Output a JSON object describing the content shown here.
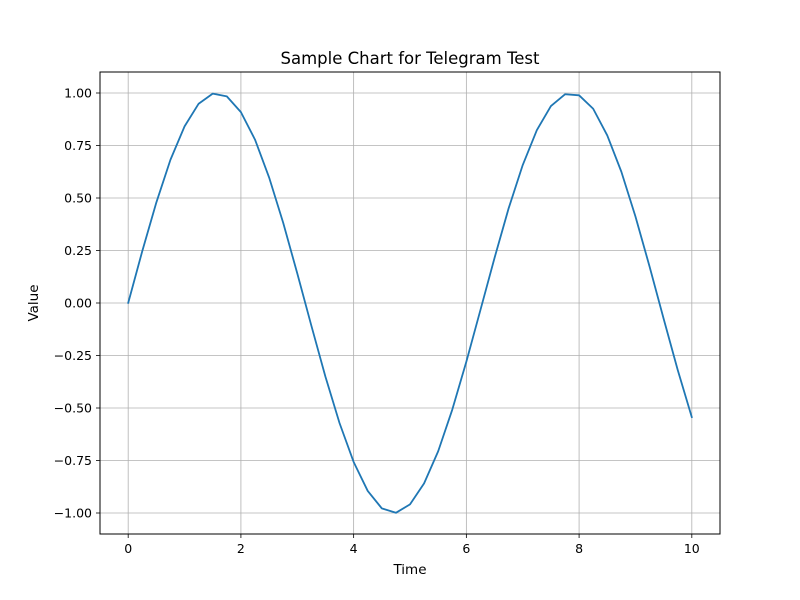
{
  "chart_data": {
    "type": "line",
    "title": "Sample Chart for Telegram Test",
    "xlabel": "Time",
    "ylabel": "Value",
    "xlim": [
      -0.5,
      10.5
    ],
    "ylim": [
      -1.1,
      1.1
    ],
    "grid": true,
    "legend": "none",
    "x_ticks": [
      0,
      2,
      4,
      6,
      8,
      10
    ],
    "x_tick_labels": [
      "0",
      "2",
      "4",
      "6",
      "8",
      "10"
    ],
    "y_ticks": [
      -1.0,
      -0.75,
      -0.5,
      -0.25,
      0.0,
      0.25,
      0.5,
      0.75,
      1.0
    ],
    "y_tick_labels": [
      "−1.00",
      "−0.75",
      "−0.50",
      "−0.25",
      "0.00",
      "0.25",
      "0.50",
      "0.75",
      "1.00"
    ],
    "colors": {
      "line": "#1f77b4",
      "grid": "#b0b0b0",
      "axes": "#000000"
    },
    "series": [
      {
        "x": [
          0,
          0.25,
          0.5,
          0.75,
          1.0,
          1.25,
          1.5,
          1.75,
          2.0,
          2.25,
          2.5,
          2.75,
          3.0,
          3.25,
          3.5,
          3.75,
          4.0,
          4.25,
          4.5,
          4.75,
          5.0,
          5.25,
          5.5,
          5.75,
          6.0,
          6.25,
          6.5,
          6.75,
          7.0,
          7.25,
          7.5,
          7.75,
          8.0,
          8.25,
          8.5,
          8.75,
          9.0,
          9.25,
          9.5,
          9.75,
          10.0
        ],
        "values": [
          0.0,
          0.247,
          0.479,
          0.682,
          0.841,
          0.949,
          0.997,
          0.984,
          0.909,
          0.778,
          0.598,
          0.382,
          0.141,
          -0.108,
          -0.351,
          -0.572,
          -0.757,
          -0.895,
          -0.978,
          -0.999,
          -0.959,
          -0.859,
          -0.706,
          -0.508,
          -0.279,
          -0.033,
          0.215,
          0.451,
          0.657,
          0.823,
          0.938,
          0.994,
          0.989,
          0.925,
          0.798,
          0.625,
          0.412,
          0.174,
          -0.075,
          -0.319,
          -0.544
        ]
      }
    ]
  }
}
